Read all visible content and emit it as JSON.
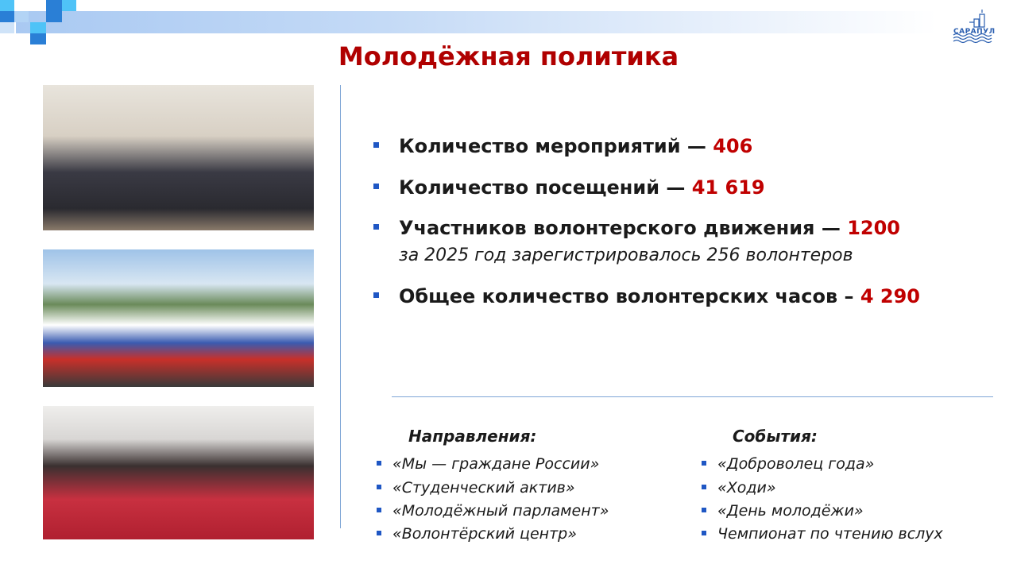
{
  "logo": {
    "small": "ГОРОД",
    "name": "САРАПУЛ"
  },
  "title": "Молодёжная политика",
  "colors": {
    "title": "#b00000",
    "value": "#c00000",
    "bullet": "#1f57c4",
    "divider": "#7fa6d6"
  },
  "photos": [
    "group-photo-with-passports",
    "flag-march-on-embankment",
    "audience-in-hall"
  ],
  "stats": [
    {
      "label": "Количество мероприятий — ",
      "value": "406"
    },
    {
      "label": "Количество посещений — ",
      "value": "41 619"
    },
    {
      "label": "Участников волонтерского движения — ",
      "value": "1200",
      "note": "за 2025 год зарегистрировалось 256 волонтеров"
    },
    {
      "label": "Общее количество волонтерских часов – ",
      "value": "4 290"
    }
  ],
  "directions": {
    "heading": "Направления:",
    "items": [
      "«Мы — граждане России»",
      "«Студенческий актив»",
      "«Молодёжный парламент»",
      "«Волонтёрский центр»"
    ]
  },
  "events": {
    "heading": "События:",
    "items": [
      "«Доброволец года»",
      "«Ходи»",
      "«День молодёжи»",
      "Чемпионат по чтению вслух"
    ]
  }
}
